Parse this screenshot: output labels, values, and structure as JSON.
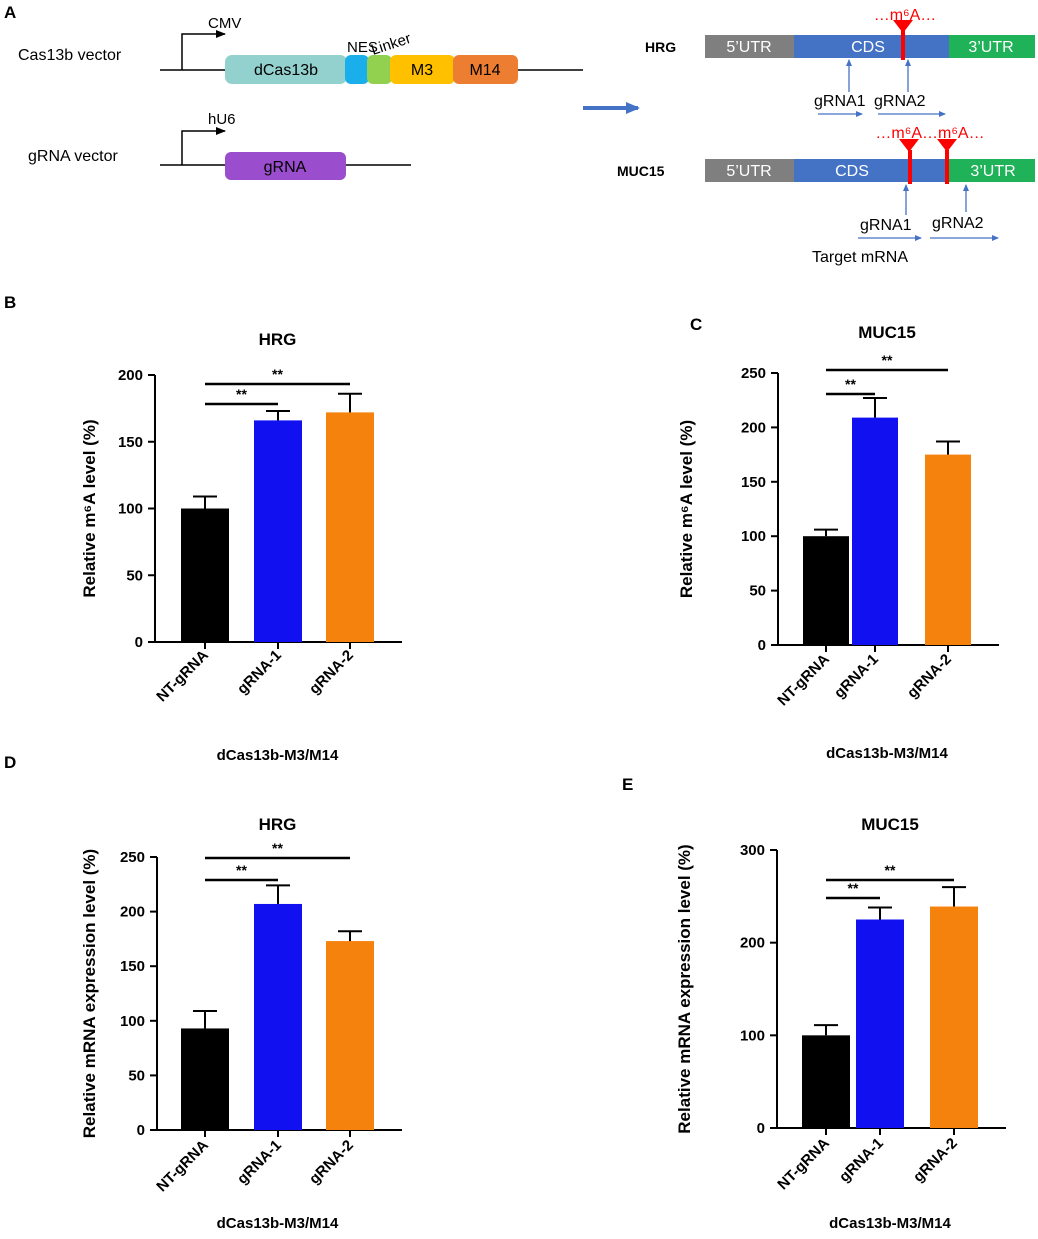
{
  "panels": {
    "a": "A",
    "b": "B",
    "c": "C",
    "d": "D",
    "e": "E"
  },
  "diagram": {
    "cas13b_vector": "Cas13b vector",
    "cmv": "CMV",
    "dcas13b": "dCas13b",
    "nes": "NES",
    "linker": "Linker",
    "m3": "M3",
    "m14": "M14",
    "grna_vector": "gRNA vector",
    "hu6": "hU6",
    "grna": "gRNA",
    "target_mrna": "Target mRNA",
    "hrg": {
      "name": "HRG",
      "utr5": "5’UTR",
      "cds": "CDS",
      "utr3": "3’UTR",
      "m6a_label": "…m⁶A…",
      "grna1": "gRNA1",
      "grna2": "gRNA2"
    },
    "muc15": {
      "name": "MUC15",
      "utr5": "5’UTR",
      "cds": "CDS",
      "utr3": "3’UTR",
      "m6a_label": "…m⁶A…m⁶A…",
      "grna1": "gRNA1",
      "grna2": "gRNA2"
    },
    "colors": {
      "dcas13b": "#93D1CE",
      "nes": "#1AAEEB",
      "linker": "#92D050",
      "m3": "#FFC000",
      "m14": "#ED7D31",
      "grna": "#9A4DCC",
      "utr5": "#7F7F7F",
      "cds": "#4472C4",
      "utr3": "#1FB258",
      "m6a": "#FF0000",
      "arrow": "#4472C4"
    }
  },
  "chart_data": [
    {
      "panel": "B",
      "type": "bar",
      "title": "HRG",
      "ylabel": "Relative m⁶A level (%)",
      "xlabel": "dCas13b-M3/M14",
      "categories": [
        "NT-gRNA",
        "gRNA-1",
        "gRNA-2"
      ],
      "values": [
        100,
        166,
        172
      ],
      "errors": [
        9,
        7,
        14
      ],
      "colors": [
        "#000000",
        "#1010F0",
        "#F5820D"
      ],
      "ylim": [
        0,
        200
      ],
      "yticks": [
        "0",
        "50",
        "100",
        "150",
        "200"
      ],
      "significance": [
        {
          "from": 0,
          "to": 1,
          "label": "**"
        },
        {
          "from": 0,
          "to": 2,
          "label": "**"
        }
      ]
    },
    {
      "panel": "C",
      "type": "bar",
      "title": "MUC15",
      "ylabel": "Relative m⁶A level (%)",
      "xlabel": "dCas13b-M3/M14",
      "categories": [
        "NT-gRNA",
        "gRNA-1",
        "gRNA-2"
      ],
      "values": [
        100,
        209,
        175
      ],
      "errors": [
        6,
        18,
        12
      ],
      "colors": [
        "#000000",
        "#1010F0",
        "#F5820D"
      ],
      "ylim": [
        0,
        250
      ],
      "yticks": [
        "0",
        "50",
        "100",
        "150",
        "200",
        "250"
      ],
      "significance": [
        {
          "from": 0,
          "to": 1,
          "label": "**"
        },
        {
          "from": 0,
          "to": 2,
          "label": "**"
        }
      ]
    },
    {
      "panel": "D",
      "type": "bar",
      "title": "HRG",
      "ylabel": "Relative mRNA expression level (%)",
      "xlabel": "dCas13b-M3/M14",
      "categories": [
        "NT-gRNA",
        "gRNA-1",
        "gRNA-2"
      ],
      "values": [
        93,
        207,
        173
      ],
      "errors": [
        16,
        17,
        9
      ],
      "colors": [
        "#000000",
        "#1010F0",
        "#F5820D"
      ],
      "ylim": [
        0,
        250
      ],
      "yticks": [
        "0",
        "50",
        "100",
        "150",
        "200",
        "250"
      ],
      "significance": [
        {
          "from": 0,
          "to": 1,
          "label": "**"
        },
        {
          "from": 0,
          "to": 2,
          "label": "**"
        }
      ]
    },
    {
      "panel": "E",
      "type": "bar",
      "title": "MUC15",
      "ylabel": "Relative mRNA expression level (%)",
      "xlabel": "dCas13b-M3/M14",
      "categories": [
        "NT-gRNA",
        "gRNA-1",
        "gRNA-2"
      ],
      "values": [
        100,
        225,
        239
      ],
      "errors": [
        11,
        13,
        21
      ],
      "colors": [
        "#000000",
        "#1010F0",
        "#F5820D"
      ],
      "ylim": [
        0,
        300
      ],
      "yticks": [
        "0",
        "100",
        "200",
        "300"
      ],
      "significance": [
        {
          "from": 0,
          "to": 1,
          "label": "**"
        },
        {
          "from": 0,
          "to": 2,
          "label": "**"
        }
      ]
    }
  ]
}
